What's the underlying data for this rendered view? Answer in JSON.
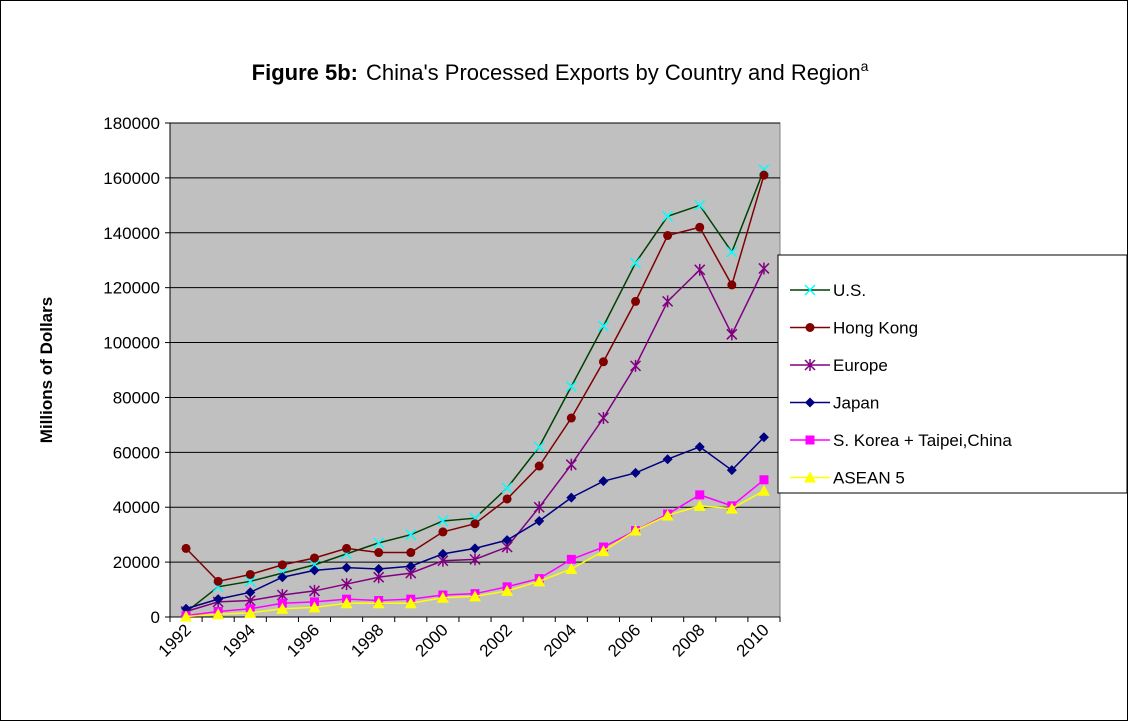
{
  "chart_data": {
    "type": "line",
    "title_prefix": "Figure 5b:",
    "title": "China's Processed Exports by Country and Region",
    "title_superscript": "a",
    "y_label": "Millions of Dollars",
    "categories": [
      "1992",
      null,
      "1994",
      null,
      "1996",
      null,
      "1998",
      null,
      "2000",
      null,
      "2002",
      null,
      "2004",
      null,
      "2006",
      null,
      "2008",
      null,
      "2010"
    ],
    "ylim": [
      0,
      180000
    ],
    "yticks": [
      0,
      20000,
      40000,
      60000,
      80000,
      100000,
      120000,
      140000,
      160000,
      180000
    ],
    "grid": true,
    "plot_background": "#c0c0c0",
    "legend_position": "right",
    "series": [
      {
        "name": "U.S.",
        "color": "#004000",
        "marker_color": "#00ffff",
        "marker": "x",
        "values": [
          1800,
          11000,
          13000,
          16000,
          19000,
          23000,
          27000,
          30000,
          35000,
          36000,
          47000,
          62000,
          84000,
          106000,
          129000,
          146000,
          150000,
          133000,
          163000
        ]
      },
      {
        "name": "Hong Kong",
        "color": "#800000",
        "marker_color": "#800000",
        "marker": "circle",
        "values": [
          25000,
          13000,
          15500,
          19000,
          21500,
          25000,
          23500,
          23500,
          31000,
          34000,
          43000,
          55000,
          72500,
          93000,
          115000,
          139000,
          142000,
          121000,
          161000
        ]
      },
      {
        "name": "Europe",
        "color": "#800080",
        "marker_color": "#800080",
        "marker": "star",
        "values": [
          2000,
          5500,
          6000,
          8000,
          9500,
          12000,
          14500,
          16000,
          20500,
          21000,
          25500,
          40000,
          55500,
          72500,
          91500,
          115000,
          126500,
          103000,
          127000
        ]
      },
      {
        "name": "Japan",
        "color": "#000080",
        "marker_color": "#000080",
        "marker": "diamond",
        "values": [
          3000,
          6500,
          9000,
          14500,
          17000,
          18000,
          17500,
          18500,
          23000,
          25000,
          28000,
          35000,
          43500,
          49500,
          52500,
          57500,
          62000,
          53500,
          65500
        ]
      },
      {
        "name": "S. Korea + Taipei,China",
        "color": "#ff00ff",
        "marker_color": "#ff00ff",
        "marker": "square",
        "values": [
          500,
          2000,
          3000,
          5000,
          5500,
          6500,
          6000,
          6500,
          8000,
          8500,
          11000,
          14000,
          21000,
          25500,
          31500,
          37500,
          44500,
          40500,
          50000
        ]
      },
      {
        "name": "ASEAN 5",
        "color": "#ffff00",
        "marker_color": "#ffff00",
        "marker": "triangle",
        "values": [
          200,
          1000,
          1500,
          3000,
          3500,
          5000,
          5000,
          5000,
          7000,
          7500,
          9500,
          13000,
          17500,
          24000,
          31500,
          37000,
          40500,
          39500,
          46000
        ]
      }
    ]
  }
}
